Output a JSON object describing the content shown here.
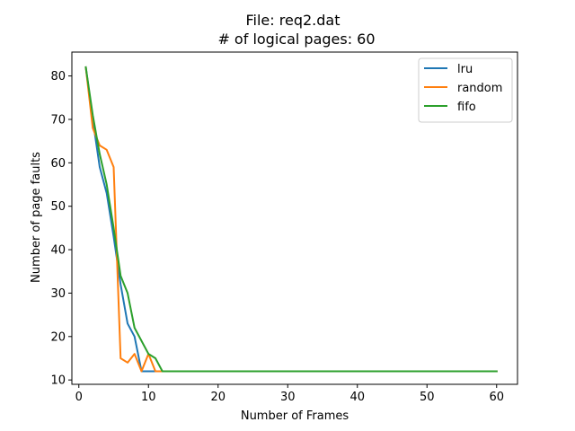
{
  "chart_data": {
    "type": "line",
    "title": "File: req2.dat",
    "subtitle": "# of logical pages: 60",
    "xlabel": "Number of Frames",
    "ylabel": "Number of page faults",
    "xlim": [
      -1,
      63
    ],
    "ylim": [
      9,
      85.5
    ],
    "xticks": [
      0,
      10,
      20,
      30,
      40,
      50,
      60
    ],
    "yticks": [
      10,
      20,
      30,
      40,
      50,
      60,
      70,
      80
    ],
    "grid": false,
    "legend_position": "top-right",
    "series": [
      {
        "name": "lru",
        "color": "#1f77b4",
        "x": [
          1,
          2,
          3,
          4,
          5,
          6,
          7,
          8,
          9,
          10,
          11,
          12,
          60
        ],
        "y": [
          82,
          70,
          59,
          53,
          43,
          32,
          23,
          20,
          12,
          12,
          12,
          12,
          12
        ]
      },
      {
        "name": "random",
        "color": "#ff7f0e",
        "x": [
          1,
          2,
          3,
          4,
          5,
          6,
          7,
          8,
          9,
          10,
          11,
          12,
          60
        ],
        "y": [
          82,
          68,
          64,
          63,
          59,
          15,
          14,
          16,
          12,
          16,
          12,
          12,
          12
        ]
      },
      {
        "name": "fifo",
        "color": "#2ca02c",
        "x": [
          1,
          2,
          3,
          4,
          5,
          6,
          7,
          8,
          9,
          10,
          11,
          12,
          13,
          60
        ],
        "y": [
          82,
          71,
          62,
          55,
          45,
          34,
          30,
          22,
          19,
          16,
          15,
          12,
          12,
          12
        ]
      }
    ]
  }
}
